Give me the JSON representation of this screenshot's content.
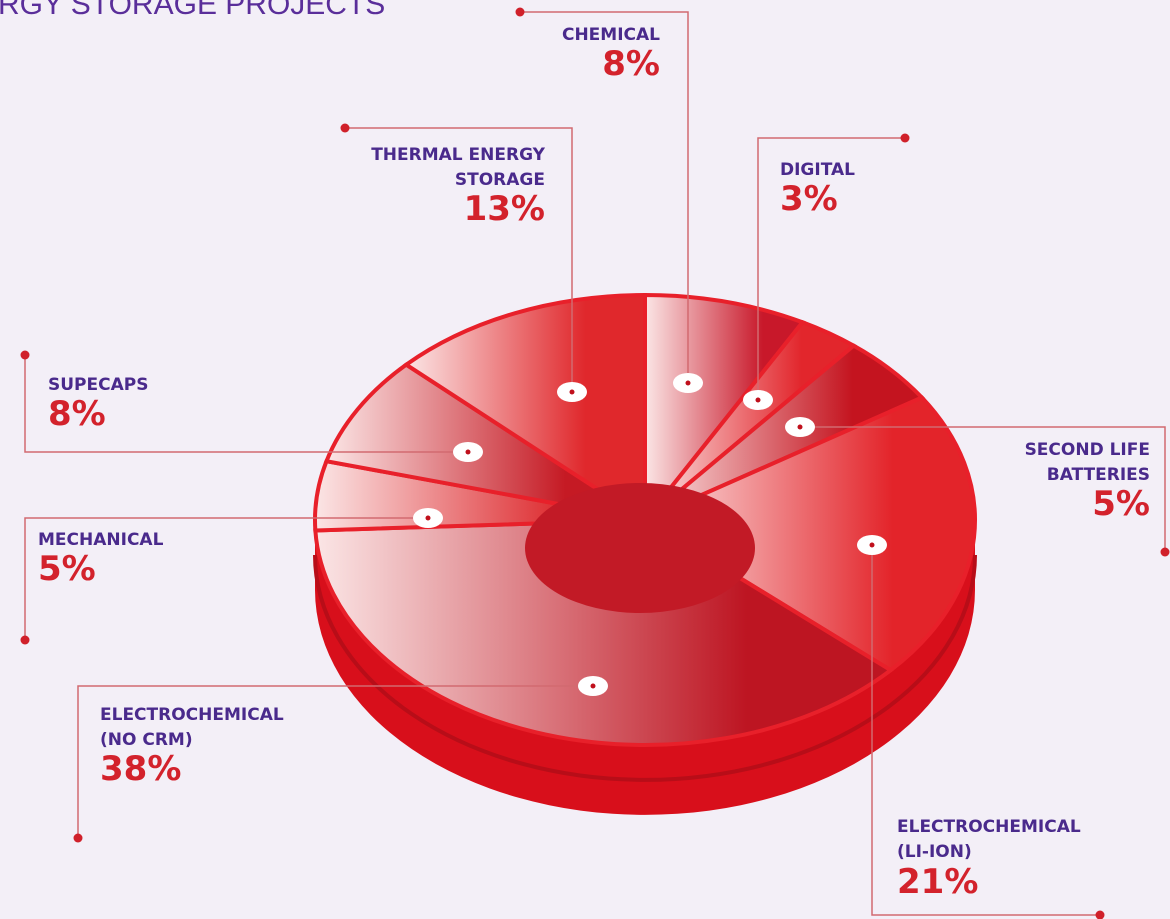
{
  "chart_data": {
    "type": "pie",
    "title": "RGY STORAGE PROJECTS",
    "categories": [
      [
        "CHEMICAL"
      ],
      [
        "DIGITAL"
      ],
      [
        "SECOND LIFE",
        "BATTERIES"
      ],
      [
        "ELECTROCHEMICAL",
        "(LI-ION)"
      ],
      [
        "ELECTROCHEMICAL",
        "(NO CRM)"
      ],
      [
        "MECHANICAL"
      ],
      [
        "SUPECAPS"
      ],
      [
        "THERMAL ENERGY",
        "STORAGE"
      ]
    ],
    "values": [
      8,
      3,
      5,
      21,
      38,
      5,
      8,
      13
    ],
    "value_labels": [
      "8%",
      "3%",
      "5%",
      "21%",
      "38%",
      "5%",
      "8%",
      "13%"
    ],
    "colors": [
      "#c8182a",
      "#e2262c",
      "#c4141f",
      "#e3242a",
      "#bd1522",
      "#dd2a2e",
      "#c51a24",
      "#e0282c"
    ]
  }
}
